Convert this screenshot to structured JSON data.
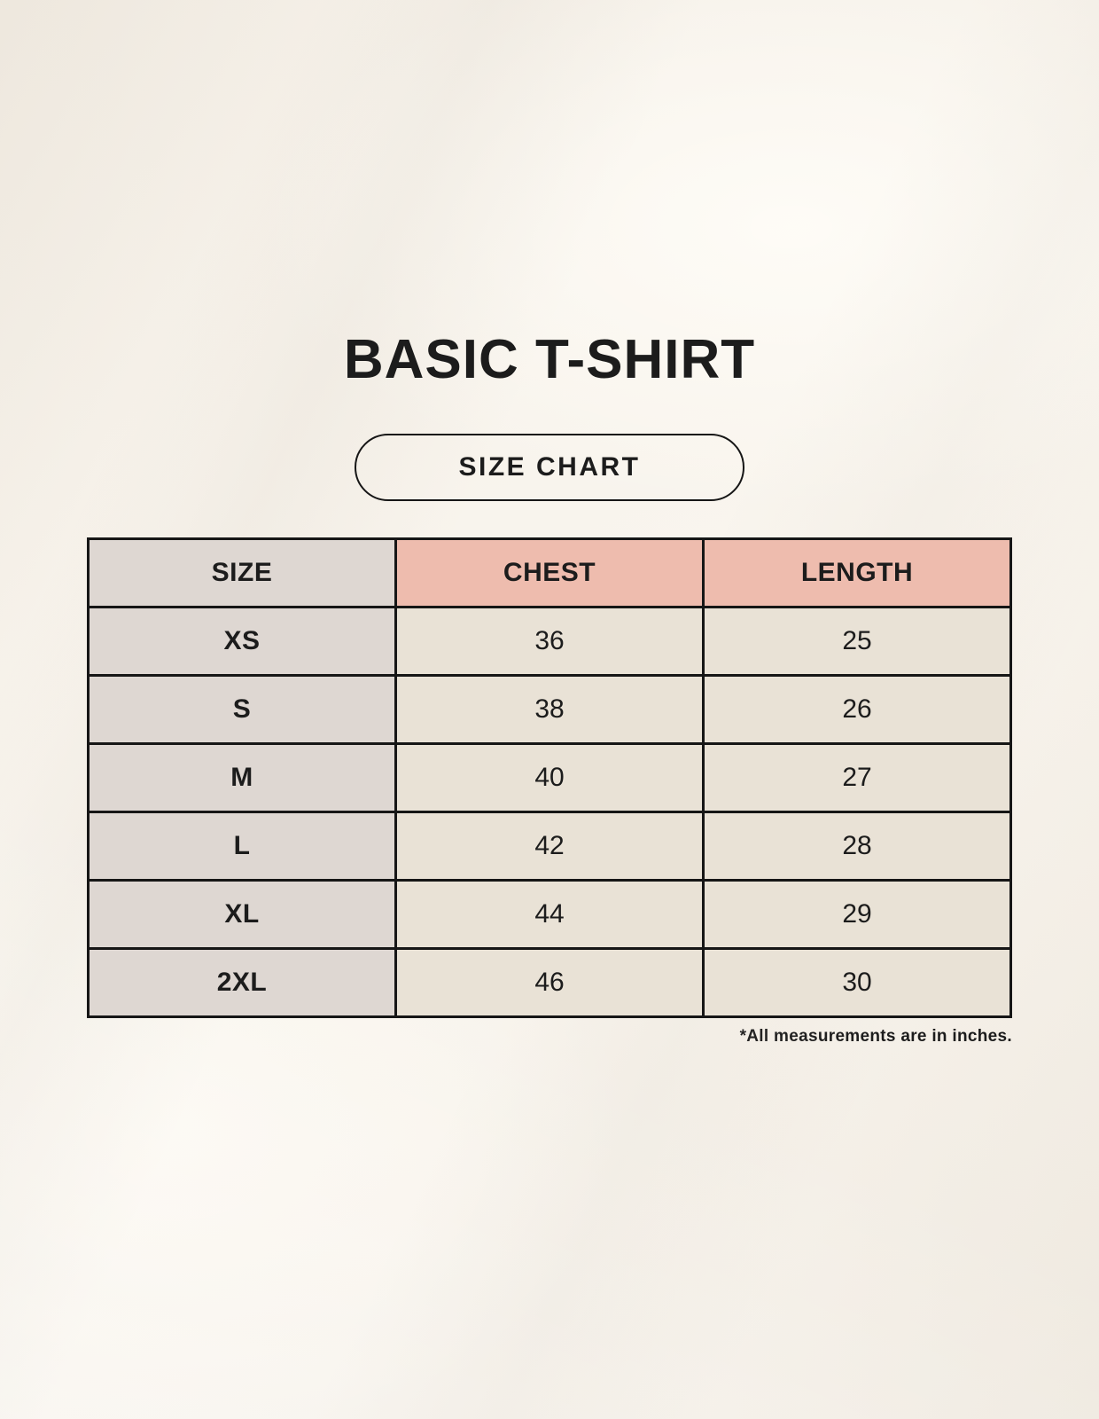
{
  "page": {
    "title": "BASIC T-SHIRT",
    "badge_label": "SIZE CHART",
    "footnote": "*All measurements are in inches."
  },
  "chart_data": {
    "type": "table",
    "title": "BASIC T-SHIRT",
    "subtitle": "SIZE CHART",
    "columns": [
      "SIZE",
      "CHEST",
      "LENGTH"
    ],
    "rows": [
      {
        "size": "XS",
        "chest": "36",
        "length": "25"
      },
      {
        "size": "S",
        "chest": "38",
        "length": "26"
      },
      {
        "size": "M",
        "chest": "40",
        "length": "27"
      },
      {
        "size": "L",
        "chest": "42",
        "length": "28"
      },
      {
        "size": "XL",
        "chest": "44",
        "length": "29"
      },
      {
        "size": "2XL",
        "chest": "46",
        "length": "30"
      }
    ],
    "units": "inches",
    "note": "*All measurements are in inches."
  },
  "colors": {
    "background": "#f7f3ec",
    "header_accent": "#eebcae",
    "size_column": "#ded7d2",
    "cell_beige": "#e9e2d6",
    "border": "#161616",
    "text": "#1c1c1c"
  }
}
